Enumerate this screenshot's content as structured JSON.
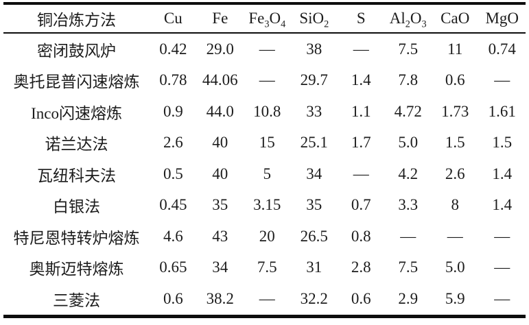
{
  "table": {
    "columns": [
      {
        "name": "method",
        "label": "铜冶炼方法"
      },
      {
        "name": "cu",
        "label": "Cu"
      },
      {
        "name": "fe",
        "label": "Fe"
      },
      {
        "name": "fe3o4",
        "label": "Fe_3O_4"
      },
      {
        "name": "sio2",
        "label": "SiO_2"
      },
      {
        "name": "s",
        "label": "S"
      },
      {
        "name": "al2o3",
        "label": "Al_2O_3"
      },
      {
        "name": "cao",
        "label": "CaO"
      },
      {
        "name": "mgo",
        "label": "MgO"
      }
    ],
    "rows": [
      {
        "method": "密闭鼓风炉",
        "values": [
          "0.42",
          "29.0",
          "—",
          "38",
          "—",
          "7.5",
          "11",
          "0.74"
        ]
      },
      {
        "method": "奥托昆普闪速熔炼",
        "values": [
          "0.78",
          "44.06",
          "—",
          "29.7",
          "1.4",
          "7.8",
          "0.6",
          "—"
        ]
      },
      {
        "method": "Inco闪速熔炼",
        "values": [
          "0.9",
          "44.0",
          "10.8",
          "33",
          "1.1",
          "4.72",
          "1.73",
          "1.61"
        ]
      },
      {
        "method": "诺兰达法",
        "values": [
          "2.6",
          "40",
          "15",
          "25.1",
          "1.7",
          "5.0",
          "1.5",
          "1.5"
        ]
      },
      {
        "method": "瓦纽科夫法",
        "values": [
          "0.5",
          "40",
          "5",
          "34",
          "—",
          "4.2",
          "2.6",
          "1.4"
        ]
      },
      {
        "method": "白银法",
        "values": [
          "0.45",
          "35",
          "3.15",
          "35",
          "0.7",
          "3.3",
          "8",
          "1.4"
        ]
      },
      {
        "method": "特尼恩特转炉熔炼",
        "values": [
          "4.6",
          "43",
          "20",
          "26.5",
          "0.8",
          "—",
          "—",
          "—"
        ]
      },
      {
        "method": "奥斯迈特熔炼",
        "values": [
          "0.65",
          "34",
          "7.5",
          "31",
          "2.8",
          "7.5",
          "5.0",
          "—"
        ]
      },
      {
        "method": "三菱法",
        "values": [
          "0.6",
          "38.2",
          "—",
          "32.2",
          "0.6",
          "2.9",
          "5.9",
          "—"
        ]
      }
    ],
    "colors": {
      "text": "#1c1c1c",
      "rule": "#0d0d0d",
      "background": "#ffffff"
    }
  }
}
